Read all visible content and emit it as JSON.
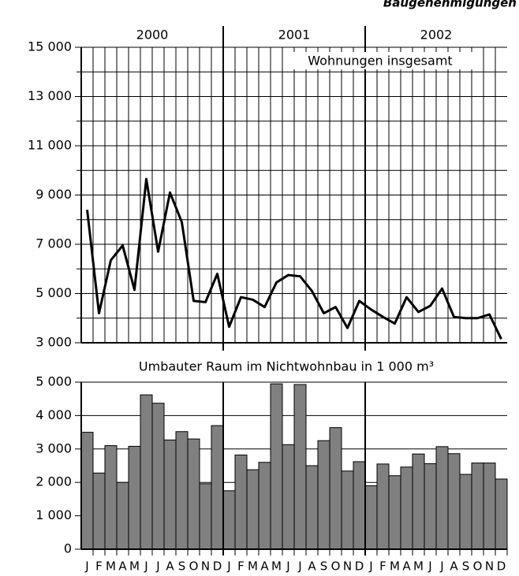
{
  "title": "Baugenehmigungen",
  "chart_data": [
    {
      "type": "line",
      "annotation": "Wohnungen insgesamt",
      "years": [
        "2000",
        "2001",
        "2002"
      ],
      "values": [
        8400,
        4200,
        6350,
        6950,
        5150,
        9650,
        6700,
        9100,
        7900,
        4700,
        4650,
        5800,
        3650,
        4850,
        4750,
        4450,
        5450,
        5750,
        5700,
        5100,
        4200,
        4450,
        3600,
        4700,
        4350,
        4050,
        3780,
        4850,
        4250,
        4500,
        5200,
        4050,
        4000,
        4000,
        4150,
        3150
      ],
      "color": "#000000",
      "ylim": [
        3000,
        15000
      ],
      "yticks": [
        {
          "value": 3000,
          "label": "3 000"
        },
        {
          "value": 5000,
          "label": "5 000"
        },
        {
          "value": 7000,
          "label": "7 000"
        },
        {
          "value": 9000,
          "label": "9 000"
        },
        {
          "value": 11000,
          "label": "11 000"
        },
        {
          "value": 13000,
          "label": "13 000"
        },
        {
          "value": 15000,
          "label": "15 000"
        }
      ],
      "minor_yticks": [
        4000,
        6000,
        8000,
        10000,
        12000,
        14000
      ],
      "grid": true
    },
    {
      "type": "bar",
      "title": "Umbauter Raum im Nichtwohnbau in 1 000 m³",
      "categories": [
        "J",
        "F",
        "M",
        "A",
        "M",
        "J",
        "J",
        "A",
        "S",
        "O",
        "N",
        "D",
        "J",
        "F",
        "M",
        "A",
        "M",
        "J",
        "J",
        "A",
        "S",
        "O",
        "N",
        "D",
        "J",
        "F",
        "M",
        "A",
        "M",
        "J",
        "J",
        "A",
        "S",
        "O",
        "N",
        "D"
      ],
      "values": [
        3500,
        2280,
        3100,
        2000,
        3080,
        4620,
        4370,
        3270,
        3520,
        3300,
        1960,
        3700,
        1750,
        2820,
        2380,
        2600,
        4950,
        3130,
        4930,
        2500,
        3250,
        3640,
        2340,
        2620,
        1900,
        2550,
        2200,
        2460,
        2850,
        2560,
        3070,
        2860,
        2240,
        2580,
        2580,
        2100
      ],
      "color": "#808080",
      "ylim": [
        0,
        5000
      ],
      "yticks": [
        0,
        {
          "value": 1000,
          "label": "1 000"
        },
        {
          "value": 2000,
          "label": "2 000"
        },
        {
          "value": 3000,
          "label": "3 000"
        },
        {
          "value": 4000,
          "label": "4 000"
        },
        {
          "value": 5000,
          "label": "5 000"
        }
      ],
      "grid": true
    }
  ]
}
